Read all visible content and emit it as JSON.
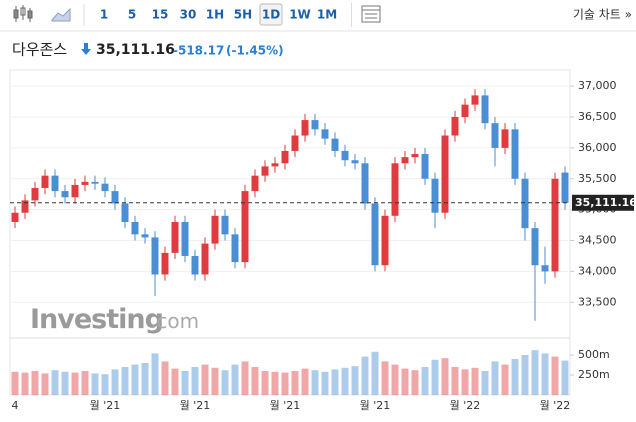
{
  "toolbar": {
    "intervals": [
      "1",
      "5",
      "15",
      "30",
      "1H",
      "5H",
      "1D",
      "1W",
      "1M"
    ],
    "selected": "1D",
    "technical": "기술 차트 »"
  },
  "header": {
    "name": "다우존스",
    "change": "-518.17",
    "change_pct": "(-1.45%)"
  },
  "watermark": {
    "brand": "Investing",
    "suffix": ".com"
  },
  "chart_data": {
    "type": "candlestick",
    "categories": [
      "4",
      null,
      null,
      null,
      null,
      null,
      null,
      null,
      null,
      "월 '21",
      null,
      null,
      null,
      null,
      null,
      null,
      null,
      null,
      "월 '21",
      null,
      null,
      null,
      null,
      null,
      null,
      null,
      null,
      "월 '21",
      null,
      null,
      null,
      null,
      null,
      null,
      null,
      null,
      "월 '21",
      null,
      null,
      null,
      null,
      null,
      null,
      null,
      null,
      "월 '22",
      null,
      null,
      null,
      null,
      null,
      null,
      null,
      null,
      "월 '22",
      null
    ],
    "open": [
      34800,
      34950,
      35150,
      35350,
      35550,
      35300,
      35200,
      35400,
      35450,
      35420,
      35300,
      35100,
      34800,
      34600,
      34550,
      33950,
      34300,
      34800,
      34250,
      33950,
      34450,
      34900,
      34600,
      34150,
      35300,
      35550,
      35700,
      35750,
      35950,
      36200,
      36450,
      36300,
      36150,
      35950,
      35800,
      35750,
      35100,
      34100,
      34900,
      35750,
      35850,
      35900,
      35500,
      34950,
      36200,
      36500,
      36700,
      36850,
      36400,
      36000,
      36300,
      35500,
      34700,
      34100,
      34000,
      35600
    ],
    "high": [
      35050,
      35250,
      35450,
      35650,
      35650,
      35400,
      35500,
      35550,
      35550,
      35520,
      35400,
      35200,
      34900,
      34700,
      34650,
      34400,
      34900,
      34900,
      34350,
      34550,
      35000,
      35000,
      34700,
      35400,
      35650,
      35800,
      35850,
      36050,
      36300,
      36550,
      36550,
      36400,
      36250,
      36050,
      35900,
      35850,
      35200,
      35000,
      35850,
      35950,
      36000,
      36000,
      35600,
      36300,
      36600,
      36800,
      36950,
      36950,
      36500,
      36400,
      36400,
      35600,
      34800,
      34400,
      35600,
      35700
    ],
    "low": [
      34700,
      34850,
      35050,
      35250,
      35200,
      35100,
      35100,
      35300,
      35320,
      35200,
      35000,
      34700,
      34500,
      34450,
      33600,
      33850,
      34200,
      34150,
      33850,
      33850,
      34350,
      34500,
      34050,
      34050,
      35200,
      35450,
      35600,
      35650,
      35850,
      36100,
      36200,
      36050,
      35850,
      35700,
      35650,
      35000,
      34000,
      34000,
      34800,
      35650,
      35750,
      35400,
      34700,
      34850,
      36100,
      36400,
      36600,
      36300,
      35700,
      35900,
      35400,
      34500,
      33200,
      33800,
      33900,
      35000
    ],
    "close": [
      34950,
      35150,
      35350,
      35550,
      35300,
      35200,
      35400,
      35450,
      35420,
      35300,
      35100,
      34800,
      34600,
      34550,
      33950,
      34300,
      34800,
      34250,
      33950,
      34450,
      34900,
      34600,
      34150,
      35300,
      35550,
      35700,
      35750,
      35950,
      36200,
      36450,
      36300,
      36150,
      35950,
      35800,
      35750,
      35100,
      34100,
      34900,
      35750,
      35850,
      35900,
      35500,
      34950,
      36200,
      36500,
      36700,
      36850,
      36400,
      36000,
      36300,
      35500,
      34700,
      34100,
      34000,
      35500,
      35111.16
    ],
    "up_color": "#e03b3f",
    "down_color": "#4a8fd4",
    "ylim": [
      32970,
      37180
    ],
    "yticks": [
      {
        "value": 33500,
        "label": "33,500"
      },
      {
        "value": 34000,
        "label": "34,000"
      },
      {
        "value": 34500,
        "label": "34,500"
      },
      {
        "value": 35000,
        "label": "35,000"
      },
      {
        "value": 35500,
        "label": "35,500"
      },
      {
        "value": 36000,
        "label": "36,000"
      },
      {
        "value": 36500,
        "label": "36,500"
      },
      {
        "value": 37000,
        "label": "37,000"
      }
    ],
    "last": {
      "value": 35111.16,
      "label": "35,111.16"
    },
    "volume": {
      "values": [
        290,
        280,
        300,
        270,
        310,
        290,
        280,
        300,
        270,
        260,
        320,
        350,
        380,
        400,
        520,
        420,
        330,
        300,
        350,
        380,
        340,
        310,
        380,
        420,
        350,
        300,
        290,
        280,
        300,
        330,
        310,
        290,
        320,
        340,
        360,
        480,
        540,
        420,
        380,
        330,
        310,
        350,
        440,
        460,
        350,
        320,
        340,
        300,
        420,
        380,
        450,
        500,
        560,
        520,
        480,
        430
      ],
      "ylim": [
        0,
        687.5
      ],
      "yticks": [
        {
          "value": 250,
          "label": "250m"
        },
        {
          "value": 500,
          "label": "500m"
        }
      ]
    }
  }
}
